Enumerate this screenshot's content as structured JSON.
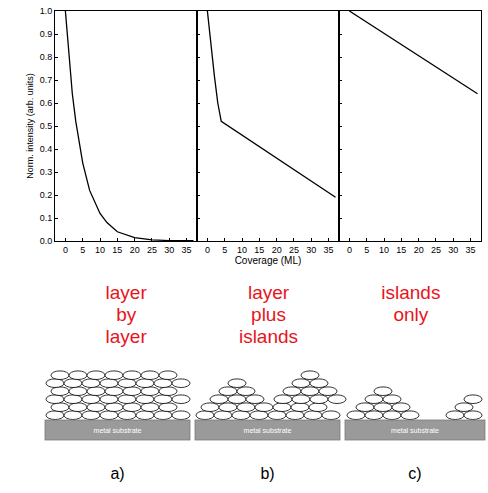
{
  "chart_data": [
    {
      "type": "line",
      "title": "layer by layer",
      "y_label": "Norm. intensity (arb. units)",
      "x": [
        0,
        1,
        2,
        3,
        4,
        5,
        7,
        10,
        12,
        15,
        20,
        25,
        30,
        35,
        37
      ],
      "values": [
        1.0,
        0.8,
        0.64,
        0.52,
        0.42,
        0.34,
        0.22,
        0.12,
        0.08,
        0.04,
        0.015,
        0.005,
        0.002,
        0.001,
        0.001
      ],
      "color": "#000000",
      "xlim": [
        -3,
        38
      ],
      "xticks": [
        0,
        5,
        10,
        15,
        20,
        25,
        30,
        35
      ],
      "ylim": [
        0,
        1
      ],
      "yticks": [
        {
          "value": 0,
          "label": "0.0"
        },
        0.1,
        0.2,
        0.3,
        0.4,
        0.5,
        0.6,
        0.7,
        0.8,
        0.9,
        {
          "value": 1,
          "label": "1.0"
        }
      ],
      "grid": false
    },
    {
      "type": "line",
      "title": "layer plus islands",
      "x_label": "Coverage (ML)",
      "x": [
        0,
        1,
        2,
        3,
        4,
        37
      ],
      "values": [
        1.0,
        0.85,
        0.72,
        0.6,
        0.52,
        0.19
      ],
      "color": "#000000",
      "xlim": [
        -3,
        38
      ],
      "xticks": [
        0,
        5,
        10,
        15,
        20,
        25,
        30,
        35
      ],
      "ylim": [
        0,
        1
      ],
      "yticks": [
        {
          "value": 0,
          "label": "0.0"
        },
        0.1,
        0.2,
        0.3,
        0.4,
        0.5,
        0.6,
        0.7,
        0.8,
        0.9,
        {
          "value": 1,
          "label": "1.0"
        }
      ],
      "grid": false,
      "tick_labels": "x"
    },
    {
      "type": "line",
      "title": "islands only",
      "x": [
        0,
        37
      ],
      "values": [
        1.0,
        0.64
      ],
      "color": "#000000",
      "xlim": [
        -3,
        38
      ],
      "xticks": [
        0,
        5,
        10,
        15,
        20,
        25,
        30,
        35
      ],
      "ylim": [
        0,
        1
      ],
      "yticks": [
        {
          "value": 0,
          "label": "0.0"
        },
        0.1,
        0.2,
        0.3,
        0.4,
        0.5,
        0.6,
        0.7,
        0.8,
        0.9,
        {
          "value": 1,
          "label": "1.0"
        }
      ],
      "grid": false,
      "tick_labels": "x"
    }
  ],
  "diagram": {
    "substrate": "metal substrate",
    "panels": [
      "a)",
      "b)",
      "c)"
    ]
  }
}
